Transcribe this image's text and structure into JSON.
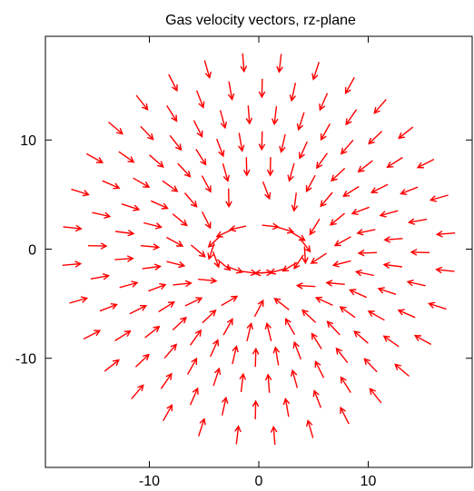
{
  "chart_data": {
    "type": "vector-field",
    "title": "Gas velocity vectors, rz-plane",
    "xlabel": "",
    "ylabel": "",
    "xlim": [
      -19.5,
      19.5
    ],
    "ylim": [
      -20,
      19.5
    ],
    "x_ticks": [
      {
        "value": -10,
        "label": "-10"
      },
      {
        "value": 0,
        "label": "0"
      },
      {
        "value": 10,
        "label": "10"
      }
    ],
    "y_ticks": [
      {
        "value": 10,
        "label": "10"
      },
      {
        "value": 0,
        "label": "0"
      },
      {
        "value": -10,
        "label": "-10"
      }
    ],
    "grid": false,
    "legend": "none",
    "arrow_color": "#ff0000",
    "field": {
      "kind": "vortex-ring-inflow",
      "ring_center": [
        0,
        0
      ],
      "ring_radius_x": 4.0,
      "ring_radius_y": 2.0,
      "inner_ring_vectors": 18,
      "outer_rings": [
        {
          "radius": 6.2,
          "count": 12
        },
        {
          "radius": 8.5,
          "count": 24
        },
        {
          "radius": 10.8,
          "count": 32
        },
        {
          "radius": 13.2,
          "count": 32
        },
        {
          "radius": 15.6,
          "count": 32
        },
        {
          "radius": 18.0,
          "count": 32
        }
      ],
      "flow_direction": "inward toward ring, circulating around ring"
    }
  }
}
